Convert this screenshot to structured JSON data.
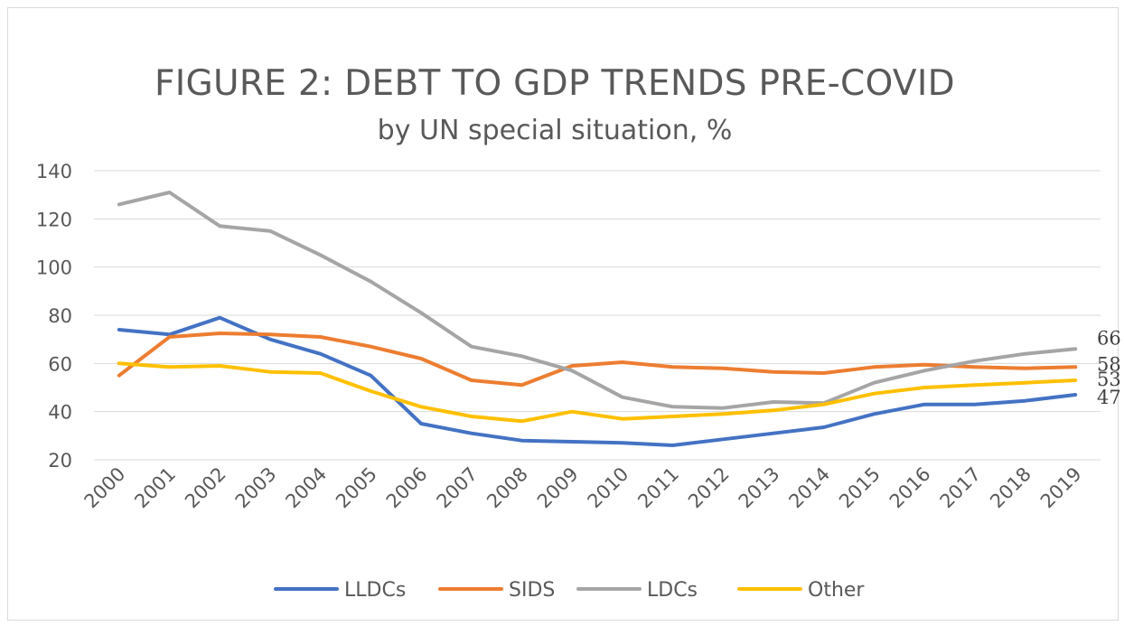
{
  "chart_data": {
    "type": "line",
    "title": "FIGURE 2: DEBT TO GDP TRENDS PRE-COVID",
    "subtitle": "by UN special situation, %",
    "categories": [
      "2000",
      "2001",
      "2002",
      "2003",
      "2004",
      "2005",
      "2006",
      "2007",
      "2008",
      "2009",
      "2010",
      "2011",
      "2012",
      "2013",
      "2014",
      "2015",
      "2016",
      "2017",
      "2018",
      "2019"
    ],
    "ylim": [
      20,
      140
    ],
    "yticks": [
      20,
      40,
      60,
      80,
      100,
      120,
      140
    ],
    "grid": true,
    "legend_position": "bottom",
    "series": [
      {
        "name": "LLDCs",
        "color": "#4472c4",
        "end_label": "47",
        "values": [
          74,
          72,
          79,
          70,
          64,
          55,
          35,
          31,
          28,
          27.5,
          27,
          26,
          28.5,
          31,
          33.5,
          39,
          43,
          43,
          44.5,
          47
        ]
      },
      {
        "name": "SIDS",
        "color": "#ed7d31",
        "end_label": "58",
        "values": [
          55,
          71,
          72.5,
          72,
          71,
          67,
          62,
          53,
          51,
          59,
          60.5,
          58.5,
          58,
          56.5,
          56,
          58.5,
          59.5,
          58.5,
          58,
          58.5
        ]
      },
      {
        "name": "LDCs",
        "color": "#a5a5a5",
        "end_label": "66",
        "values": [
          126,
          131,
          117,
          115,
          105,
          94,
          81,
          67,
          63,
          57,
          46,
          42,
          41.5,
          44,
          43.5,
          52,
          57,
          61,
          64,
          66
        ]
      },
      {
        "name": "Other",
        "color": "#ffc000",
        "end_label": "53",
        "values": [
          60,
          58.5,
          59,
          56.5,
          56,
          48.5,
          42,
          38,
          36,
          40,
          37,
          38,
          39,
          40.5,
          43,
          47.5,
          50,
          51,
          52,
          53
        ]
      }
    ]
  }
}
